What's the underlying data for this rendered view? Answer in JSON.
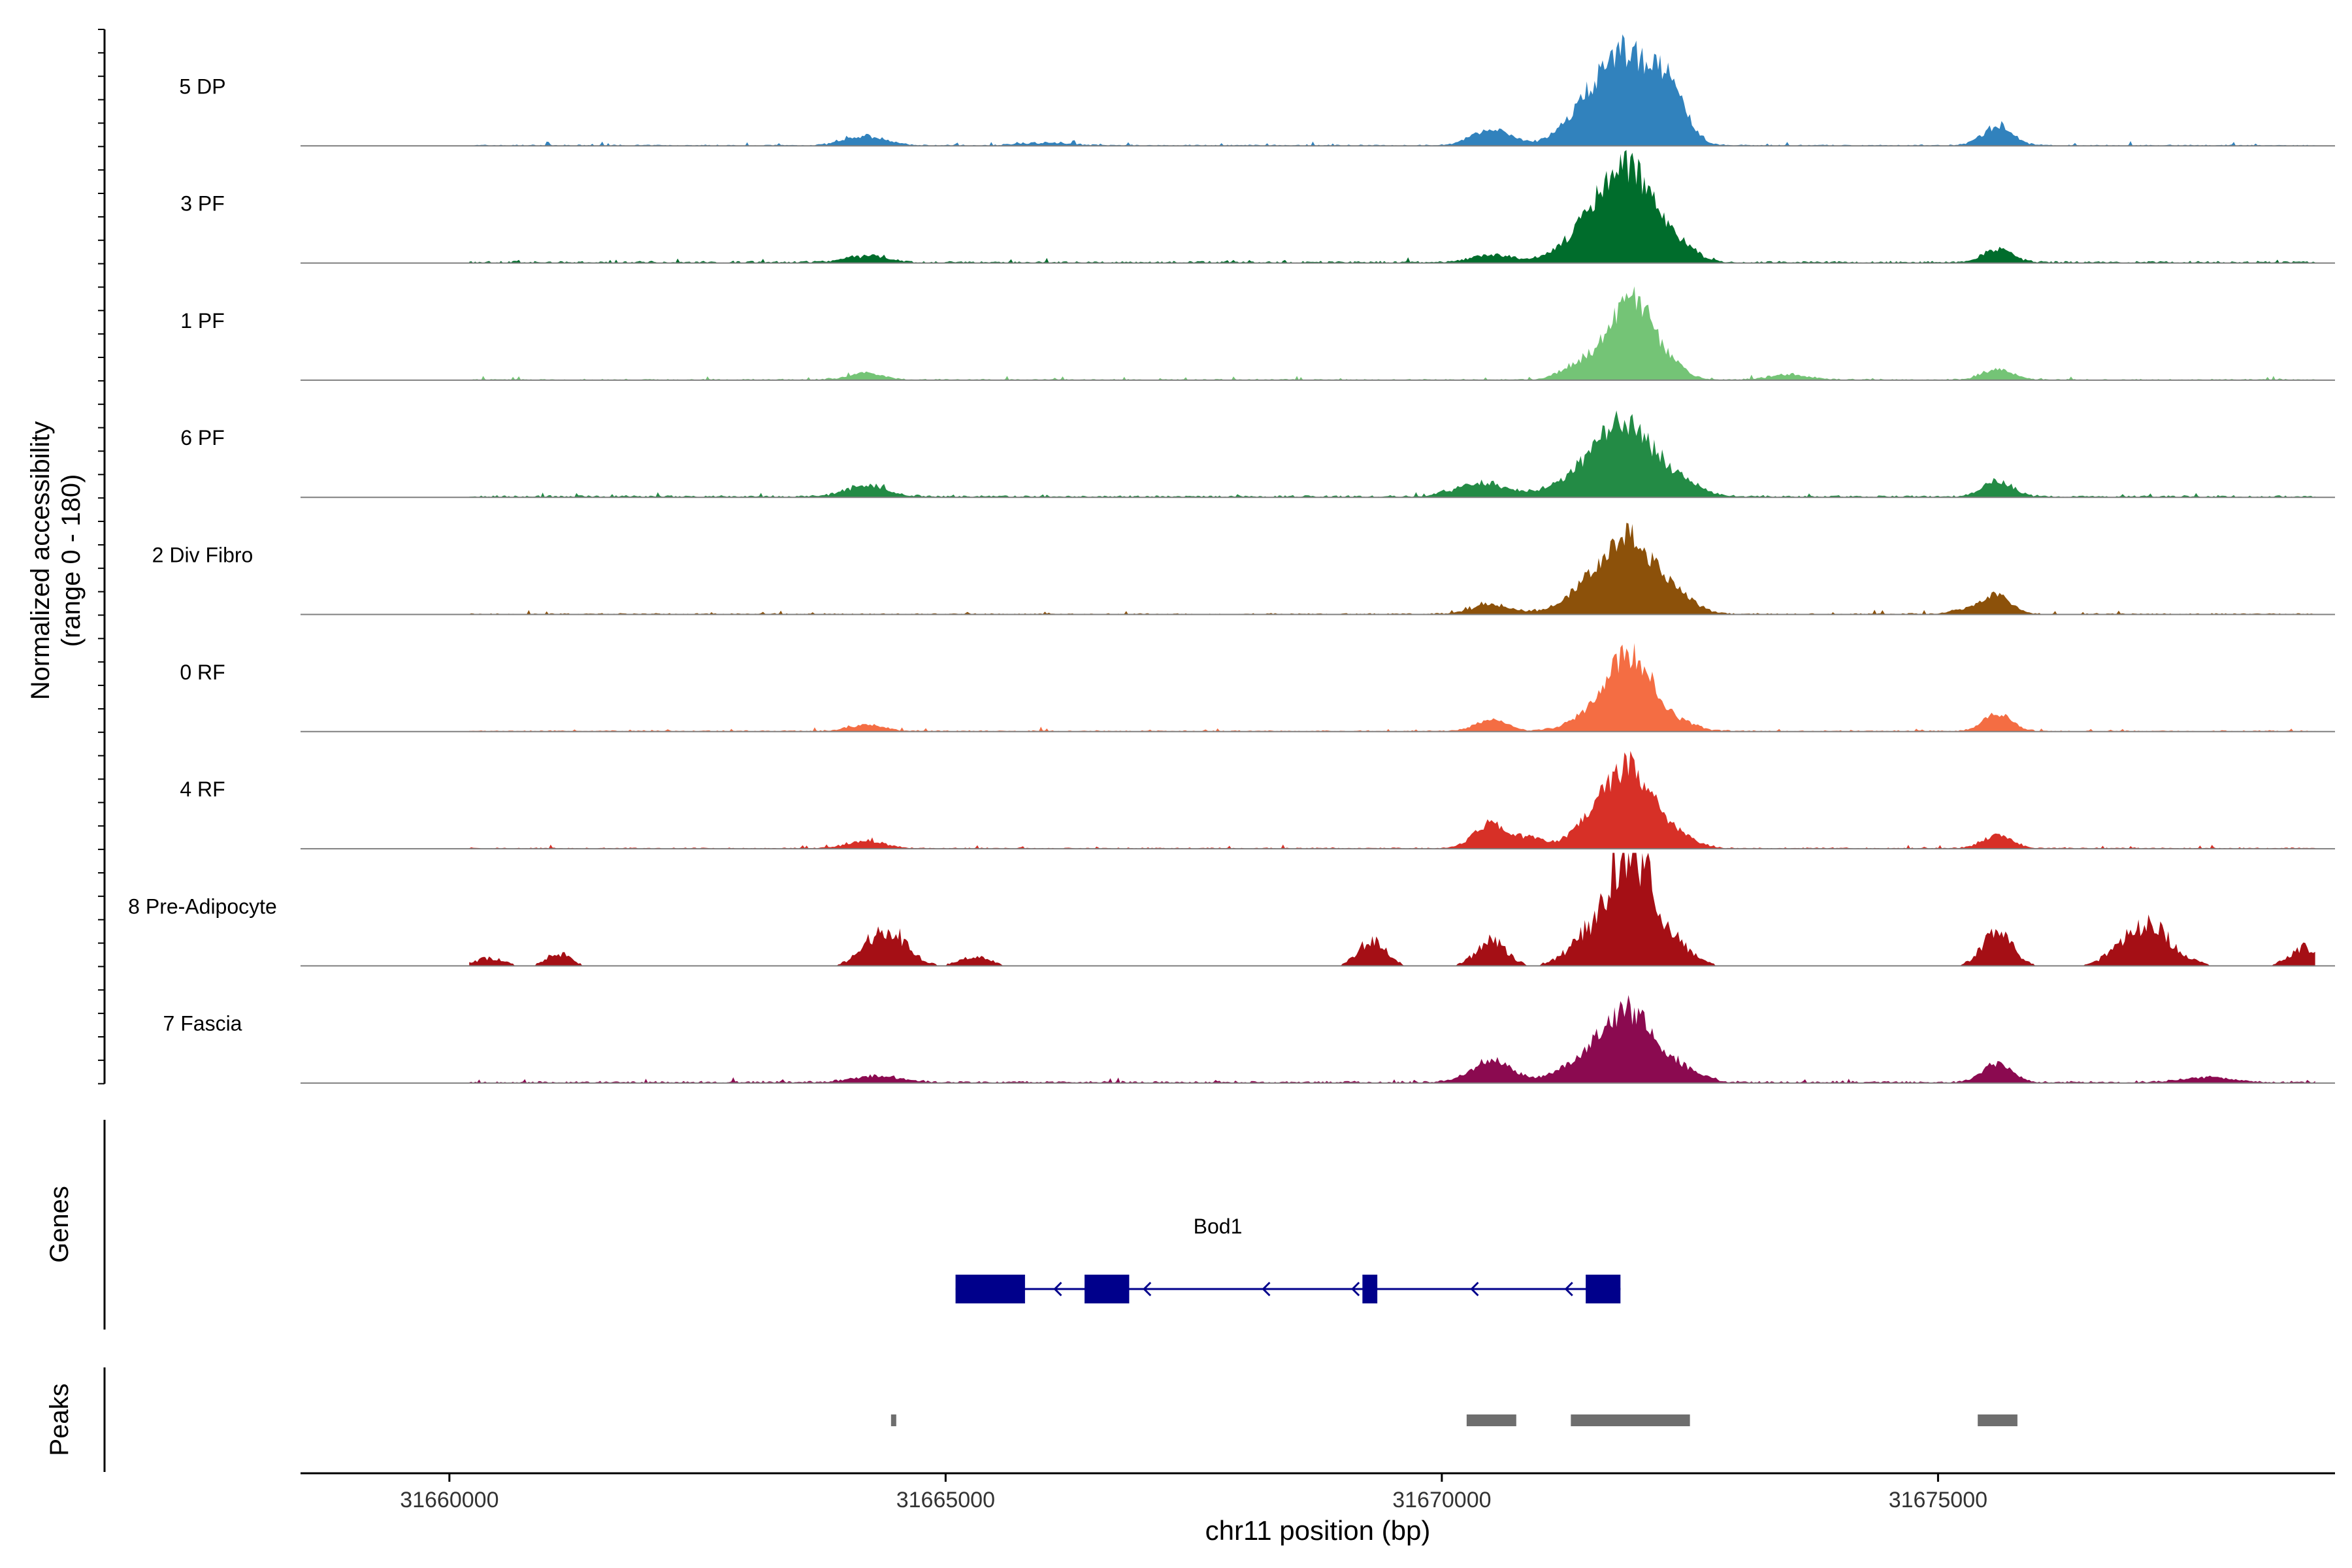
{
  "chart_data": {
    "type": "area",
    "title": "",
    "ylabel_line1": "Normalized accessibility",
    "ylabel_line2": "(range 0 - 180)",
    "y_range": [
      0,
      180
    ],
    "xlabel": "chr11 position (bp)",
    "xlim": [
      31658500,
      31679000
    ],
    "x_ticks": [
      31660000,
      31665000,
      31670000,
      31675000
    ],
    "x_tick_labels": [
      "31660000",
      "31665000",
      "31670000",
      "31675000"
    ],
    "genes_label": "Genes",
    "peaks_label": "Peaks",
    "series": [
      {
        "name": "5 DP",
        "color": "#3182bd",
        "peaks": [
          [
            31671900,
            130,
            260
          ],
          [
            31671500,
            55,
            250
          ],
          [
            31672300,
            65,
            170
          ],
          [
            31670500,
            25,
            200
          ],
          [
            31664200,
            15,
            200
          ],
          [
            31675600,
            30,
            150
          ],
          [
            31666000,
            4,
            260
          ]
        ],
        "base": 2,
        "sparse": false
      },
      {
        "name": "3 PF",
        "color": "#006d2c",
        "peaks": [
          [
            31671900,
            140,
            260
          ],
          [
            31671500,
            45,
            280
          ],
          [
            31672400,
            20,
            160
          ],
          [
            31670500,
            12,
            200
          ],
          [
            31664200,
            10,
            200
          ],
          [
            31675600,
            20,
            150
          ]
        ],
        "base": 3,
        "sparse": false
      },
      {
        "name": "1 PF",
        "color": "#74c476",
        "peaks": [
          [
            31671900,
            135,
            210
          ],
          [
            31671400,
            25,
            180
          ],
          [
            31672300,
            18,
            160
          ],
          [
            31664200,
            10,
            180
          ],
          [
            31675600,
            18,
            150
          ],
          [
            31673500,
            8,
            200
          ]
        ],
        "base": 2,
        "sparse": false
      },
      {
        "name": "6 PF",
        "color": "#238b45",
        "peaks": [
          [
            31671900,
            100,
            240
          ],
          [
            31671500,
            45,
            300
          ],
          [
            31672400,
            25,
            200
          ],
          [
            31670400,
            22,
            250
          ],
          [
            31664200,
            18,
            200
          ],
          [
            31675600,
            25,
            150
          ]
        ],
        "base": 3,
        "sparse": false
      },
      {
        "name": "2 Div Fibro",
        "color": "#8c510a",
        "peaks": [
          [
            31671900,
            110,
            260
          ],
          [
            31671500,
            35,
            260
          ],
          [
            31672400,
            20,
            180
          ],
          [
            31670500,
            15,
            200
          ],
          [
            31675600,
            30,
            140
          ],
          [
            31675300,
            8,
            160
          ]
        ],
        "base": 2,
        "sparse": false
      },
      {
        "name": "0 RF",
        "color": "#f46d43",
        "peaks": [
          [
            31671900,
            120,
            220
          ],
          [
            31671500,
            20,
            220
          ],
          [
            31672400,
            12,
            180
          ],
          [
            31670500,
            18,
            160
          ],
          [
            31664200,
            10,
            180
          ],
          [
            31675600,
            28,
            140
          ]
        ],
        "base": 2,
        "sparse": false
      },
      {
        "name": "4 RF",
        "color": "#d73027",
        "peaks": [
          [
            31671900,
            125,
            240
          ],
          [
            31671500,
            30,
            220
          ],
          [
            31672400,
            15,
            180
          ],
          [
            31670500,
            40,
            170
          ],
          [
            31670900,
            15,
            120
          ],
          [
            31664200,
            12,
            180
          ],
          [
            31675600,
            20,
            150
          ]
        ],
        "base": 2,
        "sparse": false
      },
      {
        "name": "8 Pre-Adipocyte",
        "color": "#a50f15",
        "peaks": [
          [
            31671900,
            180,
            200
          ],
          [
            31671500,
            45,
            220
          ],
          [
            31672300,
            40,
            200
          ],
          [
            31664400,
            60,
            200
          ],
          [
            31670500,
            40,
            150
          ],
          [
            31675600,
            55,
            150
          ],
          [
            31677100,
            65,
            250
          ],
          [
            31678700,
            30,
            150
          ],
          [
            31669300,
            40,
            140
          ],
          [
            31660400,
            12,
            150
          ],
          [
            31661100,
            20,
            120
          ],
          [
            31665300,
            15,
            150
          ]
        ],
        "base": 0,
        "sparse": true
      },
      {
        "name": "7 Fascia",
        "color": "#8b0a50",
        "peaks": [
          [
            31671900,
            100,
            250
          ],
          [
            31671500,
            35,
            280
          ],
          [
            31672400,
            18,
            200
          ],
          [
            31670500,
            35,
            200
          ],
          [
            31664300,
            10,
            250
          ],
          [
            31675600,
            30,
            150
          ],
          [
            31677700,
            8,
            250
          ]
        ],
        "base": 3,
        "sparse": false
      }
    ],
    "gene": {
      "name": "Bod1",
      "start": 31665100,
      "end": 31671800,
      "strand": "-",
      "exons": [
        [
          31665100,
          31665800
        ],
        [
          31666400,
          31666850
        ],
        [
          31669200,
          31669350
        ],
        [
          31671450,
          31671800
        ]
      ],
      "color": "#00008b"
    },
    "peak_regions": [
      [
        31664450,
        31664500
      ],
      [
        31670250,
        31670750
      ],
      [
        31671300,
        31672500
      ],
      [
        31675400,
        31675800
      ]
    ],
    "peak_color": "#6e6e6e"
  }
}
